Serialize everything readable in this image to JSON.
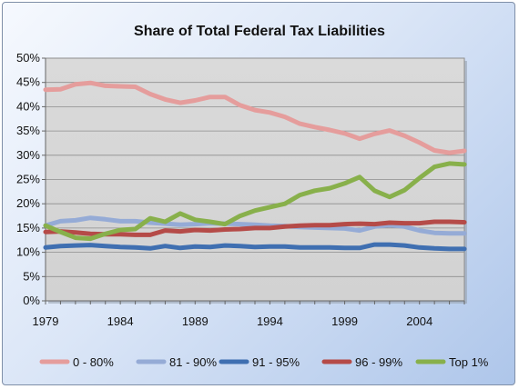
{
  "chart_data": {
    "type": "line",
    "title": "Share of Total Federal Tax Liabilities",
    "xlabel": "",
    "ylabel": "",
    "x": [
      1979,
      1980,
      1981,
      1982,
      1983,
      1984,
      1985,
      1986,
      1987,
      1988,
      1989,
      1990,
      1991,
      1992,
      1993,
      1994,
      1995,
      1996,
      1997,
      1998,
      1999,
      2000,
      2001,
      2002,
      2003,
      2004,
      2005,
      2006,
      2007
    ],
    "xticks": [
      "1979",
      "1984",
      "1989",
      "1994",
      "1999",
      "2004"
    ],
    "xtick_values": [
      1979,
      1984,
      1989,
      1994,
      1999,
      2004
    ],
    "xlim": [
      1979,
      2007
    ],
    "ylim": [
      0,
      50
    ],
    "yticks": [
      "0%",
      "5%",
      "10%",
      "15%",
      "20%",
      "25%",
      "30%",
      "35%",
      "40%",
      "45%",
      "50%"
    ],
    "ytick_values": [
      0,
      5,
      10,
      15,
      20,
      25,
      30,
      35,
      40,
      45,
      50
    ],
    "grid": true,
    "legend_position": "bottom",
    "series": [
      {
        "name": "0 - 80%",
        "color": "#e59d9c",
        "values": [
          43.5,
          43.6,
          44.6,
          44.9,
          44.3,
          44.2,
          44.1,
          42.6,
          41.5,
          40.8,
          41.3,
          42.0,
          42.0,
          40.3,
          39.3,
          38.8,
          37.9,
          36.5,
          35.8,
          35.2,
          34.5,
          33.4,
          34.4,
          35.1,
          34.0,
          32.6,
          31.0,
          30.5,
          30.9
        ]
      },
      {
        "name": "81 - 90%",
        "color": "#95abd6",
        "values": [
          15.5,
          16.4,
          16.6,
          17.1,
          16.8,
          16.4,
          16.4,
          16.1,
          15.9,
          15.7,
          15.8,
          16.0,
          15.9,
          15.8,
          15.7,
          15.5,
          15.4,
          15.2,
          15.1,
          15.0,
          14.9,
          14.5,
          15.3,
          15.6,
          15.3,
          14.5,
          14.0,
          13.9,
          13.9
        ]
      },
      {
        "name": "91 - 95%",
        "color": "#3f6fb1",
        "values": [
          11.0,
          11.3,
          11.4,
          11.5,
          11.3,
          11.1,
          11.0,
          10.8,
          11.3,
          10.9,
          11.2,
          11.1,
          11.4,
          11.3,
          11.1,
          11.2,
          11.2,
          11.0,
          11.0,
          11.0,
          10.9,
          10.9,
          11.6,
          11.6,
          11.4,
          11.0,
          10.8,
          10.7,
          10.7
        ]
      },
      {
        "name": "96 - 99%",
        "color": "#b54b48",
        "values": [
          14.2,
          14.3,
          14.1,
          13.8,
          13.7,
          13.7,
          13.6,
          13.6,
          14.5,
          14.3,
          14.6,
          14.5,
          14.7,
          14.8,
          15.0,
          15.0,
          15.3,
          15.5,
          15.6,
          15.6,
          15.8,
          15.9,
          15.8,
          16.1,
          16.0,
          16.0,
          16.3,
          16.3,
          16.2
        ]
      },
      {
        "name": "Top 1%",
        "color": "#88b04b",
        "values": [
          15.5,
          14.2,
          13.0,
          12.8,
          13.8,
          14.6,
          14.8,
          17.0,
          16.3,
          18.0,
          16.7,
          16.3,
          15.8,
          17.5,
          18.6,
          19.3,
          20.0,
          21.8,
          22.7,
          23.2,
          24.2,
          25.5,
          22.7,
          21.4,
          22.8,
          25.3,
          27.6,
          28.3,
          28.1
        ]
      }
    ]
  }
}
